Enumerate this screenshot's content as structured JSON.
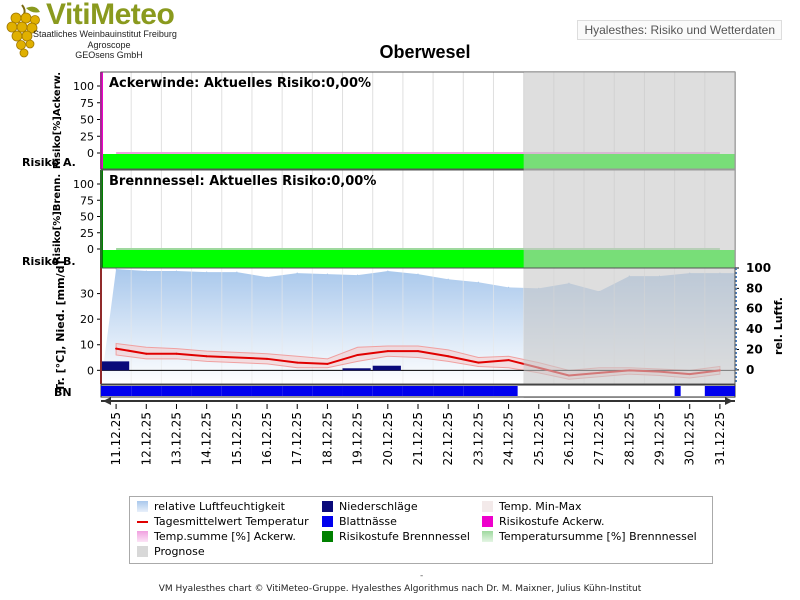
{
  "header": {
    "logo_title": "VitiMeteo",
    "logo_lines": [
      "Staatliches Weinbauinstitut Freiburg",
      "Agroscope",
      "GEOsens GmbH"
    ],
    "product_label": "Hyalesthes: Risiko und Wetterdaten"
  },
  "chart_data": [
    {
      "type": "area",
      "panel": "Ackerwinde",
      "title": "Oberwesel",
      "annotation": "Ackerwinde: Aktuelles Risiko:0,00%",
      "ylabel": "Risiko[%]Ackerw.",
      "row_label": "Risiko A.",
      "ylim": [
        0,
        100
      ],
      "yticks": [
        0,
        25,
        50,
        75,
        100
      ],
      "risk_stage_color": "#00ff00",
      "series": [
        {
          "name": "Temp.summe [%] Ackerw.",
          "values": [
            0,
            0,
            0,
            0,
            0,
            0,
            0,
            0,
            0,
            0,
            0,
            0,
            0,
            0,
            0,
            0,
            0,
            0,
            0,
            0,
            0
          ]
        }
      ]
    },
    {
      "type": "area",
      "panel": "Brennnessel",
      "annotation": "Brennnessel: Aktuelles Risiko:0,00%",
      "ylabel": "Risiko[%]Brenn.",
      "row_label": "Risiko B.",
      "ylim": [
        0,
        100
      ],
      "yticks": [
        0,
        25,
        50,
        75,
        100
      ],
      "risk_stage_color": "#00ff00",
      "series": [
        {
          "name": "Temperatursumme [%] Brennnessel",
          "values": [
            0,
            0,
            0,
            0,
            0,
            0,
            0,
            0,
            0,
            0,
            0,
            0,
            0,
            0,
            0,
            0,
            0,
            0,
            0,
            0,
            0
          ]
        }
      ]
    },
    {
      "type": "line",
      "panel": "Wetter",
      "ylabel": "Tr. [°C], Nied. [mm/d]",
      "y2label": "rel. Luftf.",
      "row_label": "BN",
      "ylim": [
        -3,
        40
      ],
      "yticks": [
        0,
        10,
        20,
        30
      ],
      "y2lim": [
        -8,
        100
      ],
      "y2ticks": [
        0,
        20,
        40,
        60,
        80,
        100
      ],
      "x": [
        "11.12.25",
        "12.12.25",
        "13.12.25",
        "14.12.25",
        "15.12.25",
        "16.12.25",
        "17.12.25",
        "18.12.25",
        "19.12.25",
        "20.12.25",
        "21.12.25",
        "22.12.25",
        "23.12.25",
        "24.12.25",
        "25.12.25",
        "26.12.25",
        "27.12.25",
        "28.12.25",
        "29.12.25",
        "30.12.25",
        "31.12.25"
      ],
      "forecast_from": "25.12.25",
      "series": [
        {
          "name": "relative Luftfeuchtigkeit",
          "axis": "right",
          "values": [
            99,
            97,
            97,
            96,
            96,
            91,
            95,
            94,
            93,
            97,
            94,
            89,
            86,
            81,
            80,
            85,
            77,
            92,
            92,
            95,
            95
          ]
        },
        {
          "name": "Tagesmittelwert Temperatur",
          "axis": "left",
          "values": [
            8.5,
            6.5,
            6.5,
            5.5,
            5,
            4.5,
            3,
            2.5,
            6,
            7.5,
            7.5,
            5.5,
            3,
            4,
            1,
            -2,
            -1,
            0,
            -0.5,
            -1.5,
            0
          ]
        },
        {
          "name": "Temp. Min-Max",
          "axis": "left",
          "type": "band",
          "min": [
            6,
            4.5,
            4.5,
            3.5,
            3,
            2.5,
            1,
            1,
            3.5,
            5.5,
            5,
            3.5,
            1.5,
            1,
            -1,
            -3.5,
            -2.5,
            -1.5,
            -2,
            -3,
            -1.5
          ],
          "max": [
            10.5,
            9,
            8.5,
            7.5,
            7,
            6.5,
            5.5,
            4.5,
            9,
            9.5,
            9.5,
            8,
            5,
            5.5,
            3,
            0,
            1,
            1,
            0.5,
            0,
            1.5
          ]
        },
        {
          "name": "Niederschläge",
          "axis": "left",
          "type": "bar",
          "values": [
            3.5,
            0,
            0,
            0,
            0,
            0,
            0,
            0,
            0.8,
            1.8,
            0,
            0,
            0,
            0,
            0,
            0,
            0,
            0,
            0,
            0,
            0
          ]
        },
        {
          "name": "Blattnässe",
          "type": "strip",
          "values": [
            1,
            1,
            1,
            1,
            1,
            1,
            1,
            1,
            1,
            1,
            1,
            1,
            1,
            0.8,
            0,
            0,
            0,
            0,
            0,
            0.2,
            1
          ]
        }
      ]
    }
  ],
  "legend": [
    {
      "label": "relative Luftfeuchtigkeit",
      "color": "#a9c8ec",
      "kind": "gradient"
    },
    {
      "label": "Niederschläge",
      "color": "#0a0a7a",
      "kind": "box"
    },
    {
      "label": "Temp. Min-Max",
      "color": "#f3eaea",
      "kind": "box"
    },
    {
      "label": "Tagesmittelwert Temperatur",
      "color": "#e00000",
      "kind": "line"
    },
    {
      "label": "Blattnässe",
      "color": "#0000ee",
      "kind": "box"
    },
    {
      "label": "Risikostufe Ackerw.",
      "color": "#ee00cc",
      "kind": "box"
    },
    {
      "label": "Temp.summe [%] Ackerw.",
      "color": "#f0a0e0",
      "kind": "gradient"
    },
    {
      "label": "Risikostufe Brennnessel",
      "color": "#008000",
      "kind": "box"
    },
    {
      "label": "Temperatursumme [%] Brennnessel",
      "color": "#9fd99f",
      "kind": "gradient"
    },
    {
      "label": "Prognose",
      "color": "#d8d8d8",
      "kind": "box"
    }
  ],
  "footer": {
    "dash": "-",
    "text": "VM Hyalesthes chart © VitiMeteo-Gruppe. Hyalesthes Algorithmus nach Dr. M. Maixner, Julius Kühn-Institut"
  }
}
